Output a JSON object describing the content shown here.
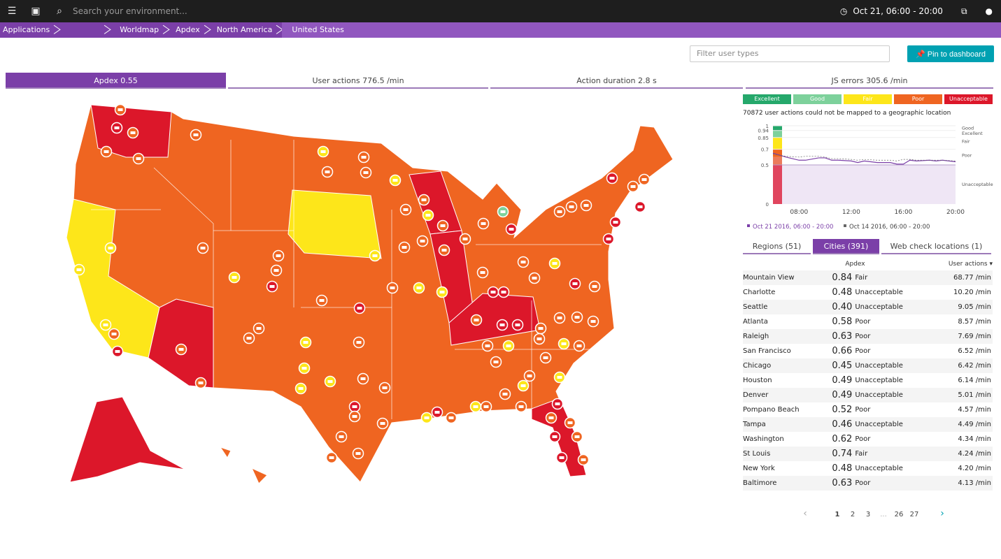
{
  "topbar": {
    "search_placeholder": "Search your environment...",
    "timeframe": "Oct 21, 06:00 - 20:00"
  },
  "breadcrumbs": [
    "Applications",
    "",
    "Worldmap",
    "Apdex",
    "North America",
    "United States"
  ],
  "filter_placeholder": "Filter user types",
  "pin_label": "Pin to dashboard",
  "tabs": [
    "Apdex 0.55",
    "User actions 776.5 /min",
    "Action duration 2.8 s",
    "JS errors 305.6 /min"
  ],
  "legend": [
    {
      "label": "Excellent",
      "color": "#25a86b"
    },
    {
      "label": "Good",
      "color": "#7dd19b"
    },
    {
      "label": "Fair",
      "color": "#fde61a"
    },
    {
      "label": "Poor",
      "color": "#ef6521"
    },
    {
      "label": "Unacceptable",
      "color": "#dc172a"
    }
  ],
  "unmapped_note": "70872 user actions could not be mapped to a geographic location",
  "chart_data": {
    "type": "line",
    "x": [
      "06:00",
      "07:00",
      "08:00",
      "08:30",
      "09:30",
      "10:00",
      "10:30",
      "11:00",
      "12:00",
      "12:30",
      "13:00",
      "14:00",
      "15:00",
      "15:30",
      "16:00",
      "16:30",
      "17:00",
      "18:00",
      "18:30",
      "19:00",
      "20:00"
    ],
    "series": [
      {
        "name": "Oct 21 2016, 06:00 - 20:00",
        "color": "#7b3fa8",
        "values": [
          0.65,
          0.6,
          0.56,
          0.56,
          0.59,
          0.59,
          0.56,
          0.56,
          0.55,
          0.53,
          0.55,
          0.53,
          0.53,
          0.51,
          0.51,
          0.56,
          0.55,
          0.56,
          0.55,
          0.56,
          0.54
        ]
      },
      {
        "name": "Oct 14 2016, 06:00 - 20:00",
        "color": "#666666",
        "values": [
          0.64,
          0.61,
          0.6,
          0.61,
          0.61,
          0.6,
          0.58,
          0.58,
          0.57,
          0.56,
          0.57,
          0.56,
          0.56,
          0.55,
          0.57,
          0.57,
          0.56,
          0.56,
          0.56,
          0.56,
          0.55
        ]
      }
    ],
    "yticks": [
      0,
      0.5,
      0.7,
      0.85,
      0.94,
      1
    ],
    "xticks": [
      "08:00",
      "12:00",
      "16:00",
      "20:00"
    ],
    "ylim": [
      0,
      1
    ],
    "bands": [
      "Excellent",
      "Good",
      "Fair",
      "Poor",
      "Unacceptable"
    ]
  },
  "subtabs": [
    "Regions (51)",
    "Cities (391)",
    "Web check locations (1)"
  ],
  "table": {
    "headers": [
      "",
      "Apdex",
      "User actions ▾"
    ],
    "rows": [
      [
        "Mountain View",
        "0.84",
        "Fair",
        "68.77 /min"
      ],
      [
        "Charlotte",
        "0.48",
        "Unacceptable",
        "10.20 /min"
      ],
      [
        "Seattle",
        "0.40",
        "Unacceptable",
        "9.05 /min"
      ],
      [
        "Atlanta",
        "0.58",
        "Poor",
        "8.57 /min"
      ],
      [
        "Raleigh",
        "0.63",
        "Poor",
        "7.69 /min"
      ],
      [
        "San Francisco",
        "0.66",
        "Poor",
        "6.52 /min"
      ],
      [
        "Chicago",
        "0.45",
        "Unacceptable",
        "6.42 /min"
      ],
      [
        "Houston",
        "0.49",
        "Unacceptable",
        "6.14 /min"
      ],
      [
        "Denver",
        "0.49",
        "Unacceptable",
        "5.01 /min"
      ],
      [
        "Pompano Beach",
        "0.52",
        "Poor",
        "4.57 /min"
      ],
      [
        "Tampa",
        "0.46",
        "Unacceptable",
        "4.49 /min"
      ],
      [
        "Washington",
        "0.62",
        "Poor",
        "4.34 /min"
      ],
      [
        "St Louis",
        "0.74",
        "Fair",
        "4.24 /min"
      ],
      [
        "New York",
        "0.48",
        "Unacceptable",
        "4.20 /min"
      ],
      [
        "Baltimore",
        "0.63",
        "Poor",
        "4.13 /min"
      ]
    ]
  },
  "pager": {
    "prev": "‹",
    "pages": [
      "1",
      "2",
      "3",
      "...",
      "26",
      "27"
    ],
    "next": "›"
  }
}
